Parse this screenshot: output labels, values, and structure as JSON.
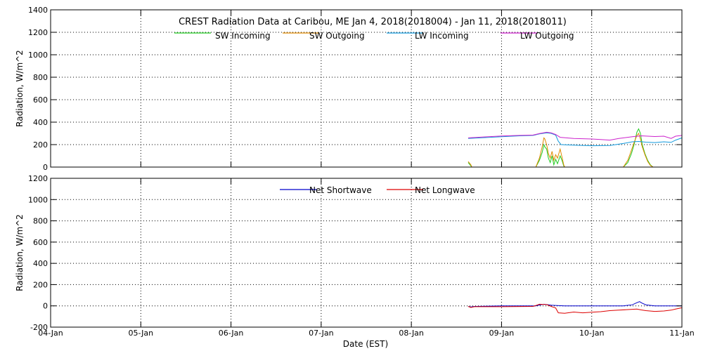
{
  "chart_data": [
    {
      "type": "line",
      "title": "CREST Radiation Data at Caribou, ME   Jan  4, 2018(2018004) - Jan 11, 2018(2018011)",
      "xlabel": "Date (EST)",
      "ylabel": "Radiation, W/m^2",
      "xlim": [
        0,
        7
      ],
      "ylim": [
        0,
        1400
      ],
      "yticks": [
        0,
        200,
        400,
        600,
        800,
        1000,
        1200,
        1400
      ],
      "xtick_labels": [
        "04-Jan",
        "05-Jan",
        "06-Jan",
        "07-Jan",
        "08-Jan",
        "09-Jan",
        "10-Jan",
        "11-Jan"
      ],
      "grid": "dotted",
      "legend": "top",
      "colors": {
        "sw_in": "#22cc22",
        "sw_out": "#e08a00",
        "lw_in": "#1199dd",
        "lw_out": "#cc22cc"
      },
      "series": [
        {
          "name": "SW Incoming",
          "key": "sw_in",
          "segments": [
            [
              [
                4.63,
                40
              ],
              [
                4.67,
                0
              ]
            ],
            [
              [
                5.38,
                0
              ],
              [
                5.42,
                60
              ],
              [
                5.45,
                130
              ],
              [
                5.47,
                200
              ],
              [
                5.48,
                180
              ],
              [
                5.5,
                160
              ],
              [
                5.52,
                80
              ],
              [
                5.54,
                40
              ],
              [
                5.56,
                100
              ],
              [
                5.58,
                20
              ],
              [
                5.6,
                70
              ],
              [
                5.62,
                30
              ],
              [
                5.65,
                100
              ],
              [
                5.67,
                60
              ],
              [
                5.69,
                10
              ],
              [
                5.7,
                0
              ]
            ],
            [
              [
                6.35,
                0
              ],
              [
                6.4,
                40
              ],
              [
                6.44,
                120
              ],
              [
                6.47,
                200
              ],
              [
                6.5,
                310
              ],
              [
                6.52,
                340
              ],
              [
                6.54,
                300
              ],
              [
                6.56,
                200
              ],
              [
                6.59,
                120
              ],
              [
                6.62,
                60
              ],
              [
                6.65,
                20
              ],
              [
                6.68,
                0
              ]
            ]
          ]
        },
        {
          "name": "SW Outgoing",
          "key": "sw_out",
          "segments": [
            [
              [
                4.63,
                50
              ],
              [
                4.66,
                20
              ],
              [
                4.67,
                0
              ]
            ],
            [
              [
                5.38,
                0
              ],
              [
                5.42,
                80
              ],
              [
                5.45,
                180
              ],
              [
                5.47,
                260
              ],
              [
                5.48,
                250
              ],
              [
                5.5,
                200
              ],
              [
                5.52,
                120
              ],
              [
                5.54,
                80
              ],
              [
                5.56,
                140
              ],
              [
                5.58,
                60
              ],
              [
                5.6,
                110
              ],
              [
                5.62,
                80
              ],
              [
                5.65,
                160
              ],
              [
                5.67,
                90
              ],
              [
                5.69,
                20
              ],
              [
                5.7,
                0
              ]
            ],
            [
              [
                6.35,
                0
              ],
              [
                6.4,
                60
              ],
              [
                6.44,
                150
              ],
              [
                6.47,
                220
              ],
              [
                6.5,
                280
              ],
              [
                6.52,
                300
              ],
              [
                6.54,
                250
              ],
              [
                6.56,
                180
              ],
              [
                6.59,
                110
              ],
              [
                6.62,
                50
              ],
              [
                6.65,
                15
              ],
              [
                6.68,
                0
              ]
            ]
          ]
        },
        {
          "name": "LW Incoming",
          "key": "lw_in",
          "segments": [
            [
              [
                4.63,
                255
              ],
              [
                4.8,
                262
              ],
              [
                5.0,
                270
              ],
              [
                5.2,
                278
              ],
              [
                5.35,
                282
              ],
              [
                5.42,
                295
              ],
              [
                5.5,
                305
              ],
              [
                5.55,
                300
              ],
              [
                5.6,
                285
              ],
              [
                5.63,
                230
              ],
              [
                5.66,
                200
              ],
              [
                5.8,
                195
              ],
              [
                6.0,
                190
              ],
              [
                6.2,
                192
              ],
              [
                6.35,
                210
              ],
              [
                6.45,
                225
              ],
              [
                6.52,
                228
              ],
              [
                6.6,
                222
              ],
              [
                6.7,
                218
              ],
              [
                6.8,
                225
              ],
              [
                6.88,
                220
              ],
              [
                6.93,
                240
              ],
              [
                7.0,
                260
              ]
            ]
          ]
        },
        {
          "name": "LW Outgoing",
          "key": "lw_out",
          "segments": [
            [
              [
                4.63,
                260
              ],
              [
                4.8,
                268
              ],
              [
                5.0,
                276
              ],
              [
                5.2,
                282
              ],
              [
                5.35,
                285
              ],
              [
                5.42,
                298
              ],
              [
                5.5,
                310
              ],
              [
                5.55,
                305
              ],
              [
                5.6,
                290
              ],
              [
                5.65,
                265
              ],
              [
                5.8,
                255
              ],
              [
                6.0,
                250
              ],
              [
                6.1,
                245
              ],
              [
                6.2,
                240
              ],
              [
                6.3,
                255
              ],
              [
                6.45,
                270
              ],
              [
                6.55,
                278
              ],
              [
                6.7,
                272
              ],
              [
                6.8,
                275
              ],
              [
                6.88,
                255
              ],
              [
                6.93,
                275
              ],
              [
                7.0,
                282
              ]
            ]
          ]
        }
      ]
    },
    {
      "type": "line",
      "xlabel": "Date (EST)",
      "ylabel": "Radiation, W/m^2",
      "xlim": [
        0,
        7
      ],
      "ylim": [
        -200,
        1200
      ],
      "yticks": [
        -200,
        0,
        200,
        400,
        600,
        800,
        1000,
        1200
      ],
      "xtick_labels": [
        "04-Jan",
        "05-Jan",
        "06-Jan",
        "07-Jan",
        "08-Jan",
        "09-Jan",
        "10-Jan",
        "11-Jan"
      ],
      "grid": "dotted",
      "legend": "top",
      "colors": {
        "net_sw": "#0000cc",
        "net_lw": "#dd0000"
      },
      "series": [
        {
          "name": "Net Shortwave",
          "key": "net_sw",
          "segments": [
            [
              [
                4.63,
                -5
              ],
              [
                4.66,
                -10
              ],
              [
                4.7,
                -5
              ],
              [
                5.0,
                0
              ],
              [
                5.38,
                0
              ],
              [
                5.42,
                8
              ],
              [
                5.47,
                15
              ],
              [
                5.5,
                12
              ],
              [
                5.55,
                6
              ],
              [
                5.6,
                4
              ],
              [
                5.7,
                0
              ],
              [
                6.0,
                0
              ],
              [
                6.35,
                0
              ],
              [
                6.45,
                10
              ],
              [
                6.5,
                30
              ],
              [
                6.53,
                40
              ],
              [
                6.56,
                25
              ],
              [
                6.6,
                10
              ],
              [
                6.7,
                0
              ],
              [
                7.0,
                0
              ]
            ]
          ]
        },
        {
          "name": "Net Longwave",
          "key": "net_lw",
          "segments": [
            [
              [
                4.63,
                -5
              ],
              [
                4.66,
                -15
              ],
              [
                4.7,
                -8
              ],
              [
                5.0,
                -8
              ],
              [
                5.35,
                -5
              ],
              [
                5.42,
                15
              ],
              [
                5.5,
                12
              ],
              [
                5.55,
                -5
              ],
              [
                5.6,
                -20
              ],
              [
                5.63,
                -65
              ],
              [
                5.7,
                -70
              ],
              [
                5.8,
                -58
              ],
              [
                5.9,
                -65
              ],
              [
                6.0,
                -60
              ],
              [
                6.1,
                -55
              ],
              [
                6.2,
                -45
              ],
              [
                6.3,
                -40
              ],
              [
                6.4,
                -35
              ],
              [
                6.5,
                -30
              ],
              [
                6.55,
                -38
              ],
              [
                6.6,
                -45
              ],
              [
                6.7,
                -52
              ],
              [
                6.8,
                -48
              ],
              [
                6.88,
                -40
              ],
              [
                6.93,
                -30
              ],
              [
                7.0,
                -18
              ]
            ]
          ]
        }
      ]
    }
  ]
}
